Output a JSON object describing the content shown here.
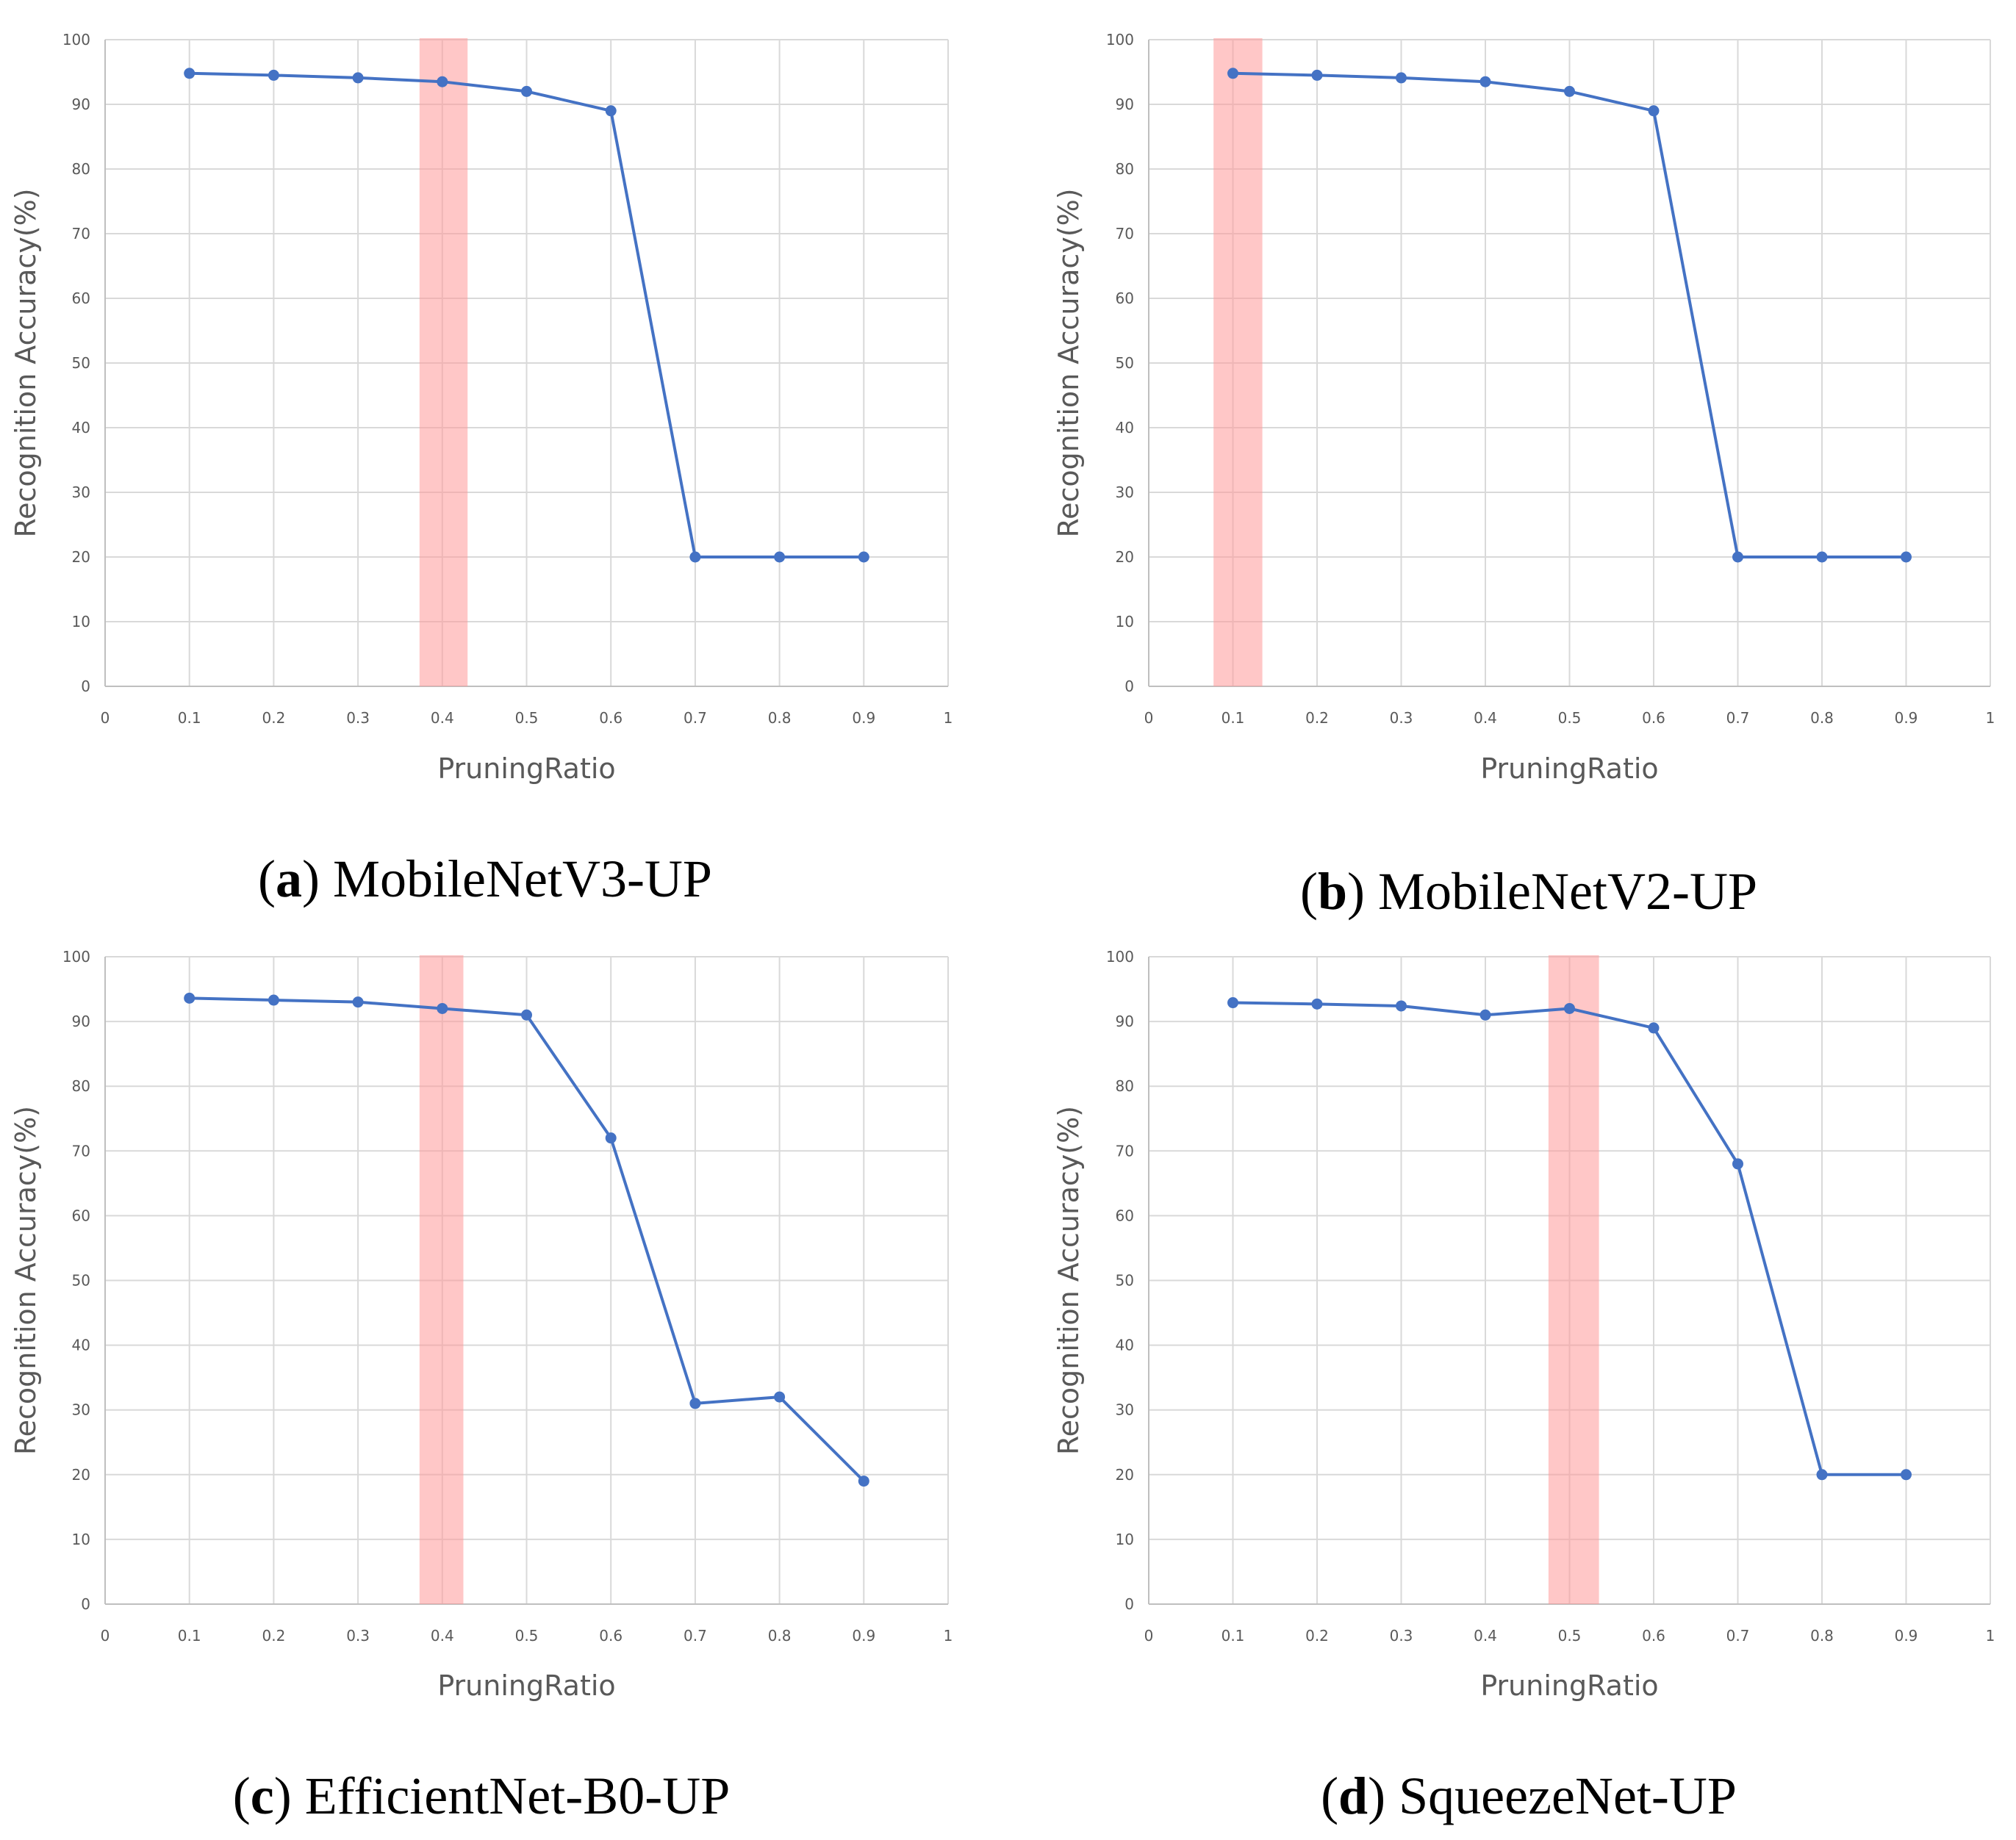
{
  "colors": {
    "line": "#4472C4",
    "marker": "#4472C4",
    "highlight": "#FF9999",
    "grid": "#D9D9D9",
    "axis": "#BFBFBF",
    "text": "#595959"
  },
  "chart_data": [
    {
      "type": "line",
      "panel_letter": "a",
      "panel_name": "MobileNetV3-UP",
      "xlabel": "PruningRatio",
      "ylabel": "Recognition  Accuracy(%)",
      "xlim": [
        0,
        1
      ],
      "ylim": [
        0,
        100
      ],
      "xticks": [
        "0",
        "0.1",
        "0.2",
        "0.3",
        "0.4",
        "0.5",
        "0.6",
        "0.7",
        "0.8",
        "0.9",
        "1"
      ],
      "yticks": [
        "0",
        "10",
        "20",
        "30",
        "40",
        "50",
        "60",
        "70",
        "80",
        "90",
        "100"
      ],
      "grid": true,
      "x": [
        0.1,
        0.2,
        0.3,
        0.4,
        0.5,
        0.6,
        0.7,
        0.8,
        0.9
      ],
      "y": [
        94.8,
        94.5,
        94.1,
        93.5,
        92.0,
        89.0,
        20.0,
        20.0,
        20.0
      ],
      "highlight_x_range": [
        0.373,
        0.43
      ]
    },
    {
      "type": "line",
      "panel_letter": "b",
      "panel_name": "MobileNetV2-UP",
      "xlabel": "PruningRatio",
      "ylabel": "Recognition  Accuracy(%)",
      "xlim": [
        0,
        1
      ],
      "ylim": [
        0,
        100
      ],
      "xticks": [
        "0",
        "0.1",
        "0.2",
        "0.3",
        "0.4",
        "0.5",
        "0.6",
        "0.7",
        "0.8",
        "0.9",
        "1"
      ],
      "yticks": [
        "0",
        "10",
        "20",
        "30",
        "40",
        "50",
        "60",
        "70",
        "80",
        "90",
        "100"
      ],
      "grid": true,
      "x": [
        0.1,
        0.2,
        0.3,
        0.4,
        0.5,
        0.6,
        0.7,
        0.8,
        0.9
      ],
      "y": [
        94.8,
        94.5,
        94.1,
        93.5,
        92.0,
        89.0,
        20.0,
        20.0,
        20.0
      ],
      "highlight_x_range": [
        0.077,
        0.135
      ]
    },
    {
      "type": "line",
      "panel_letter": "c",
      "panel_name": "EfficientNet-B0-UP",
      "xlabel": "PruningRatio",
      "ylabel": "Recognition  Accuracy(%)",
      "xlim": [
        0,
        1
      ],
      "ylim": [
        0,
        100
      ],
      "xticks": [
        "0",
        "0.1",
        "0.2",
        "0.3",
        "0.4",
        "0.5",
        "0.6",
        "0.7",
        "0.8",
        "0.9",
        "1"
      ],
      "yticks": [
        "0",
        "10",
        "20",
        "30",
        "40",
        "50",
        "60",
        "70",
        "80",
        "90",
        "100"
      ],
      "grid": true,
      "x": [
        0.1,
        0.2,
        0.3,
        0.4,
        0.5,
        0.6,
        0.7,
        0.8,
        0.9
      ],
      "y": [
        93.6,
        93.3,
        93.0,
        92.0,
        91.0,
        72.0,
        31.0,
        32.0,
        19.0
      ],
      "highlight_x_range": [
        0.373,
        0.425
      ]
    },
    {
      "type": "line",
      "panel_letter": "d",
      "panel_name": "SqueezeNet-UP",
      "xlabel": "PruningRatio",
      "ylabel": "Recognition  Accuracy(%)",
      "xlim": [
        0,
        1
      ],
      "ylim": [
        0,
        100
      ],
      "xticks": [
        "0",
        "0.1",
        "0.2",
        "0.3",
        "0.4",
        "0.5",
        "0.6",
        "0.7",
        "0.8",
        "0.9",
        "1"
      ],
      "yticks": [
        "0",
        "10",
        "20",
        "30",
        "40",
        "50",
        "60",
        "70",
        "80",
        "90",
        "100"
      ],
      "grid": true,
      "x": [
        0.1,
        0.2,
        0.3,
        0.4,
        0.5,
        0.6,
        0.7,
        0.8,
        0.9
      ],
      "y": [
        92.9,
        92.7,
        92.4,
        91.0,
        92.0,
        89.0,
        68.0,
        20.0,
        20.0
      ],
      "highlight_x_range": [
        0.475,
        0.535
      ]
    }
  ]
}
